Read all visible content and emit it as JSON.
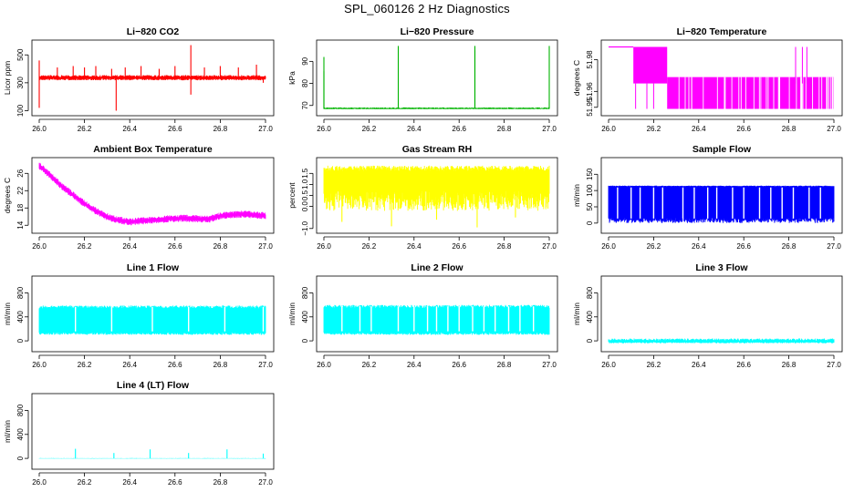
{
  "title": "SPL_060126  2 Hz Diagnostics",
  "chart_data": [
    {
      "type": "line",
      "title": "Li−820 CO2",
      "ylabel": "Licor ppm",
      "color": "#ff0000",
      "xlim": [
        26.0,
        27.0
      ],
      "ylim": [
        90,
        580
      ],
      "xticks": [
        "26.0",
        "26.2",
        "26.4",
        "26.6",
        "26.8",
        "27.0"
      ],
      "yticks": [
        {
          "v": 100,
          "label": "100"
        },
        {
          "v": 300,
          "label": "300"
        },
        {
          "v": 500,
          "label": "500"
        }
      ],
      "series": [
        {
          "name": "CO2",
          "baseline": 335,
          "band": [
            318,
            355
          ],
          "spikes": [
            [
              26.0,
              460
            ],
            [
              26.0,
              120
            ],
            [
              26.08,
              410
            ],
            [
              26.15,
              420
            ],
            [
              26.2,
              410
            ],
            [
              26.25,
              420
            ],
            [
              26.32,
              400
            ],
            [
              26.34,
              100
            ],
            [
              26.38,
              410
            ],
            [
              26.45,
              420
            ],
            [
              26.53,
              400
            ],
            [
              26.6,
              420
            ],
            [
              26.67,
              570
            ],
            [
              26.67,
              215
            ],
            [
              26.73,
              410
            ],
            [
              26.8,
              420
            ],
            [
              26.88,
              410
            ],
            [
              26.96,
              430
            ],
            [
              26.99,
              300
            ]
          ]
        }
      ]
    },
    {
      "type": "line",
      "title": "Li−820 Pressure",
      "ylabel": "kPa",
      "color": "#00b400",
      "xlim": [
        26.0,
        27.0
      ],
      "ylim": [
        67.0,
        98.0
      ],
      "xticks": [
        "26.0",
        "26.2",
        "26.4",
        "26.6",
        "26.8",
        "27.0"
      ],
      "yticks": [
        {
          "v": 70,
          "label": "70"
        },
        {
          "v": 80,
          "label": "80"
        },
        {
          "v": 90,
          "label": "90"
        }
      ],
      "series": [
        {
          "name": "Pressure",
          "baseline": 68.6,
          "band": [
            68.3,
            69.1
          ],
          "spikes": [
            [
              26.0,
              92.0
            ],
            [
              26.0,
              85.5
            ],
            [
              26.33,
              97.0
            ],
            [
              26.67,
              97.0
            ],
            [
              26.67,
              95.0
            ],
            [
              27.0,
              97.0
            ]
          ]
        }
      ]
    },
    {
      "type": "line",
      "title": "Li−820 Temperature",
      "ylabel": "degrees C",
      "color": "#ff00ff",
      "xlim": [
        26.0,
        27.0
      ],
      "ylim": [
        51.947,
        51.99
      ],
      "xticks": [
        "26.0",
        "26.2",
        "26.4",
        "26.6",
        "26.8",
        "27.0"
      ],
      "yticks": [
        {
          "v": 51.95,
          "label": "51.95"
        },
        {
          "v": 51.96,
          "label": "51.96"
        },
        {
          "v": 51.98,
          "label": "51.98"
        }
      ],
      "series": [
        {
          "name": "Temperature",
          "levels": [
            {
              "x0": 26.0,
              "x1": 26.11,
              "lo": 51.988,
              "hi": 51.988
            },
            {
              "x0": 26.11,
              "x1": 26.26,
              "lo": 51.965,
              "hi": 51.988
            },
            {
              "x0": 26.26,
              "x1": 27.0,
              "lo": 51.949,
              "hi": 51.969
            }
          ],
          "spikes": [
            [
              26.12,
              51.949
            ],
            [
              26.17,
              51.949
            ],
            [
              26.2,
              51.949
            ],
            [
              26.83,
              51.988
            ],
            [
              26.86,
              51.988
            ],
            [
              26.88,
              51.988
            ]
          ]
        }
      ]
    },
    {
      "type": "line",
      "title": "Ambient Box Temperature",
      "ylabel": "degrees C",
      "color": "#ff00ff",
      "xlim": [
        26.0,
        27.0
      ],
      "ylim": [
        13.0,
        28.8
      ],
      "xticks": [
        "26.0",
        "26.2",
        "26.4",
        "26.6",
        "26.8",
        "27.0"
      ],
      "yticks": [
        {
          "v": 14,
          "label": "14"
        },
        {
          "v": 18,
          "label": "18"
        },
        {
          "v": 22,
          "label": "22"
        },
        {
          "v": 26,
          "label": "26"
        }
      ],
      "series": [
        {
          "name": "Ambient",
          "noise": 0.7,
          "curve": [
            [
              26.0,
              27.8
            ],
            [
              26.05,
              25.5
            ],
            [
              26.1,
              23.0
            ],
            [
              26.15,
              21.0
            ],
            [
              26.2,
              19.0
            ],
            [
              26.25,
              17.3
            ],
            [
              26.3,
              16.0
            ],
            [
              26.35,
              15.2
            ],
            [
              26.4,
              14.8
            ],
            [
              26.5,
              15.2
            ],
            [
              26.6,
              15.6
            ],
            [
              26.65,
              15.6
            ],
            [
              26.75,
              15.4
            ],
            [
              26.8,
              16.2
            ],
            [
              26.9,
              16.6
            ],
            [
              27.0,
              16.2
            ]
          ]
        }
      ]
    },
    {
      "type": "line",
      "title": "Gas Stream RH",
      "ylabel": "percent",
      "color": "#ffff00",
      "xlim": [
        26.0,
        27.0
      ],
      "ylim": [
        -1.05,
        2.05
      ],
      "xticks": [
        "26.0",
        "26.2",
        "26.4",
        "26.6",
        "26.8",
        "27.0"
      ],
      "yticks": [
        {
          "v": -1.0,
          "label": "−1.0"
        },
        {
          "v": 0.0,
          "label": "0.0"
        },
        {
          "v": 0.5,
          "label": "0.5"
        },
        {
          "v": 1.0,
          "label": "1.0"
        },
        {
          "v": 1.5,
          "label": "1.5"
        }
      ],
      "series": [
        {
          "name": "RH",
          "baseline": 1.0,
          "band": [
            -0.2,
            1.85
          ],
          "spikes": [
            [
              26.08,
              -0.7
            ],
            [
              26.3,
              -0.9
            ],
            [
              26.5,
              -0.6
            ],
            [
              26.68,
              -0.95
            ],
            [
              26.85,
              -0.5
            ]
          ]
        }
      ]
    },
    {
      "type": "line",
      "title": "Sample Flow",
      "ylabel": "ml/min",
      "color": "#0000ff",
      "xlim": [
        26.0,
        27.0
      ],
      "ylim": [
        -20,
        190
      ],
      "xticks": [
        "26.0",
        "26.2",
        "26.4",
        "26.6",
        "26.8",
        "27.0"
      ],
      "yticks": [
        {
          "v": 0,
          "label": "0"
        },
        {
          "v": 50,
          "label": "50"
        },
        {
          "v": 100,
          "label": "100"
        },
        {
          "v": 150,
          "label": "150"
        }
      ],
      "series": [
        {
          "name": "Sample",
          "baseline": 105,
          "band": [
            0,
            115
          ],
          "gaps": [
            26.04,
            26.1,
            26.14,
            26.2,
            26.24,
            26.33,
            26.38,
            26.44,
            26.48,
            26.55,
            26.6,
            26.67,
            26.72,
            26.77,
            26.82,
            26.89,
            26.94
          ]
        }
      ]
    },
    {
      "type": "line",
      "title": "Line 1 Flow",
      "ylabel": "ml/min",
      "color": "#00ffff",
      "xlim": [
        26.0,
        27.0
      ],
      "ylim": [
        -120,
        1020
      ],
      "xticks": [
        "26.0",
        "26.2",
        "26.4",
        "26.6",
        "26.8",
        "27.0"
      ],
      "yticks": [
        {
          "v": 0,
          "label": "0"
        },
        {
          "v": 400,
          "label": "400"
        },
        {
          "v": 800,
          "label": "800"
        }
      ],
      "series": [
        {
          "name": "Line 1",
          "baseline": 350,
          "band": [
            100,
            590
          ],
          "gaps": [
            26.16,
            26.32,
            26.5,
            26.66,
            26.82,
            26.99
          ]
        }
      ]
    },
    {
      "type": "line",
      "title": "Line 2 Flow",
      "ylabel": "ml/min",
      "color": "#00ffff",
      "xlim": [
        26.0,
        27.0
      ],
      "ylim": [
        -120,
        1020
      ],
      "xticks": [
        "26.0",
        "26.2",
        "26.4",
        "26.6",
        "26.8",
        "27.0"
      ],
      "yticks": [
        {
          "v": 0,
          "label": "0"
        },
        {
          "v": 400,
          "label": "400"
        },
        {
          "v": 800,
          "label": "800"
        }
      ],
      "series": [
        {
          "name": "Line 2",
          "baseline": 350,
          "band": [
            100,
            600
          ],
          "gaps": [
            26.08,
            26.16,
            26.21,
            26.33,
            26.4,
            26.46,
            26.5,
            26.55,
            26.6,
            26.66,
            26.71,
            26.76,
            26.82,
            26.87,
            26.93
          ]
        }
      ]
    },
    {
      "type": "line",
      "title": "Line 3 Flow",
      "ylabel": "ml/min",
      "color": "#00ffff",
      "xlim": [
        26.0,
        27.0
      ],
      "ylim": [
        -120,
        1020
      ],
      "xticks": [
        "26.0",
        "26.2",
        "26.4",
        "26.6",
        "26.8",
        "27.0"
      ],
      "yticks": [
        {
          "v": 0,
          "label": "0"
        },
        {
          "v": 400,
          "label": "400"
        },
        {
          "v": 800,
          "label": "800"
        }
      ],
      "series": [
        {
          "name": "Line 3",
          "baseline": -10,
          "band": [
            -40,
            40
          ],
          "spikes": []
        }
      ]
    },
    {
      "type": "line",
      "title": "Line 4 (LT) Flow",
      "ylabel": "ml/min",
      "color": "#00ffff",
      "xlim": [
        26.0,
        27.0
      ],
      "ylim": [
        -120,
        1020
      ],
      "xticks": [
        "26.0",
        "26.2",
        "26.4",
        "26.6",
        "26.8",
        "27.0"
      ],
      "yticks": [
        {
          "v": 0,
          "label": "0"
        },
        {
          "v": 400,
          "label": "400"
        },
        {
          "v": 800,
          "label": "800"
        }
      ],
      "series": [
        {
          "name": "Line 4",
          "baseline": 0,
          "band": [
            -4,
            4
          ],
          "spikes": [
            [
              26.16,
              160
            ],
            [
              26.33,
              90
            ],
            [
              26.49,
              150
            ],
            [
              26.66,
              90
            ],
            [
              26.83,
              150
            ],
            [
              26.99,
              80
            ]
          ]
        }
      ]
    }
  ]
}
